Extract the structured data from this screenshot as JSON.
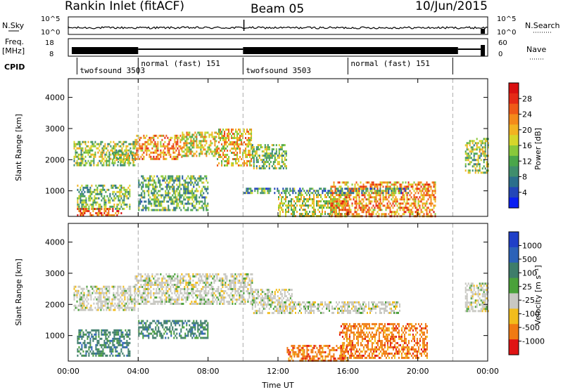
{
  "header": {
    "station": "Rankin Inlet (fitACF)",
    "beam": "Beam 05",
    "date": "10/Jun/2015"
  },
  "status_panels": {
    "nsky_label": "N.Sky",
    "nsearch_label": "N.Search",
    "nsky_ticks": [
      "10^5",
      "10^0"
    ],
    "nsearch_ticks": [
      "10^5",
      "10^0"
    ],
    "freq_label_1": "Freq.",
    "freq_label_2": "[MHz]",
    "freq_ticks": [
      "18",
      "8"
    ],
    "nave_label": "Nave",
    "nave_ticks": [
      "60",
      "0"
    ],
    "cpid_label": "CPID",
    "cpid_segments": [
      {
        "label": "twofsound 3503",
        "start": 0.5,
        "end": 4.0
      },
      {
        "label": "normal (fast) 151",
        "start": 4.0,
        "end": 10.0
      },
      {
        "label": "twofsound 3503",
        "start": 10.0,
        "end": 16.0
      },
      {
        "label": "normal (fast) 151",
        "start": 16.0,
        "end": 22.0
      }
    ]
  },
  "chart_data": [
    {
      "type": "heatmap",
      "title": "",
      "ylabel": "Slant Range [km]",
      "xlabel": "",
      "xlim": [
        0,
        24
      ],
      "ylim": [
        180,
        4600
      ],
      "yticks": [
        "1000",
        "2000",
        "3000",
        "4000"
      ],
      "colorbar": {
        "label": "Power [dB]",
        "ticks": [
          "4",
          "8",
          "12",
          "16",
          "20",
          "24",
          "28"
        ],
        "colors": [
          "#0a1ff2",
          "#2346b8",
          "#2b6f8c",
          "#3f8e6c",
          "#4aa64a",
          "#89c83a",
          "#d6d62a",
          "#f2b321",
          "#f48a1a",
          "#ef5a17",
          "#e52a16",
          "#d90f10"
        ]
      },
      "regions": [
        {
          "t0": 0.3,
          "t1": 3.8,
          "r0": 1800,
          "r1": 2600,
          "level": 0.45
        },
        {
          "t0": 2.5,
          "t1": 3.8,
          "r0": 1900,
          "r1": 2300,
          "level": 0.5
        },
        {
          "t0": 3.8,
          "t1": 6.5,
          "r0": 2000,
          "r1": 2800,
          "level": 0.7
        },
        {
          "t0": 6.5,
          "t1": 8.5,
          "r0": 2100,
          "r1": 2900,
          "level": 0.55
        },
        {
          "t0": 8.5,
          "t1": 10.5,
          "r0": 1800,
          "r1": 3000,
          "level": 0.62
        },
        {
          "t0": 10.5,
          "t1": 12.5,
          "r0": 1700,
          "r1": 2500,
          "level": 0.45
        },
        {
          "t0": 0.5,
          "t1": 3.5,
          "r0": 400,
          "r1": 1200,
          "level": 0.4
        },
        {
          "t0": 4.0,
          "t1": 8.0,
          "r0": 400,
          "r1": 1500,
          "level": 0.38
        },
        {
          "t0": 0.5,
          "t1": 3.0,
          "r0": 200,
          "r1": 450,
          "level": 0.8
        },
        {
          "t0": 12.0,
          "t1": 16.0,
          "r0": 200,
          "r1": 900,
          "level": 0.5
        },
        {
          "t0": 15.0,
          "t1": 21.0,
          "r0": 200,
          "r1": 1300,
          "level": 0.7
        },
        {
          "t0": 10.0,
          "t1": 19.5,
          "r0": 900,
          "r1": 1100,
          "level": 0.3
        },
        {
          "t0": 22.7,
          "t1": 24.0,
          "r0": 1600,
          "r1": 2700,
          "level": 0.45
        }
      ]
    },
    {
      "type": "heatmap",
      "title": "",
      "ylabel": "Slant Range [km]",
      "xlabel": "Time UT",
      "xlim": [
        0,
        24
      ],
      "ylim": [
        180,
        4600
      ],
      "xticks": [
        "00:00",
        "04:00",
        "08:00",
        "12:00",
        "16:00",
        "20:00",
        "00:00"
      ],
      "yticks": [
        "1000",
        "2000",
        "3000",
        "4000"
      ],
      "colorbar": {
        "label": "Velocity [m s⁻¹]",
        "ticks": [
          "1000",
          "500",
          "100",
          "25",
          "-25",
          "-100",
          "-500",
          "-1000"
        ],
        "colors": [
          "#1f3fc8",
          "#2c62b8",
          "#3e7d6a",
          "#4aa13a",
          "#c8c8c2",
          "#f2bd1c",
          "#f07a12",
          "#e01414"
        ]
      },
      "regions": [
        {
          "t0": 0.3,
          "t1": 3.8,
          "r0": 1800,
          "r1": 2600,
          "level": 0.5
        },
        {
          "t0": 3.8,
          "t1": 10.5,
          "r0": 2000,
          "r1": 3000,
          "level": 0.5
        },
        {
          "t0": 10.5,
          "t1": 12.8,
          "r0": 1700,
          "r1": 2500,
          "level": 0.5
        },
        {
          "t0": 0.5,
          "t1": 3.5,
          "r0": 350,
          "r1": 1200,
          "level": 0.3
        },
        {
          "t0": 4.0,
          "t1": 8.0,
          "r0": 900,
          "r1": 1500,
          "level": 0.3
        },
        {
          "t0": 12.5,
          "t1": 16.0,
          "r0": 200,
          "r1": 700,
          "level": 0.75
        },
        {
          "t0": 15.5,
          "t1": 20.5,
          "r0": 300,
          "r1": 1400,
          "level": 0.8
        },
        {
          "t0": 12.0,
          "t1": 19.0,
          "r0": 1700,
          "r1": 2100,
          "level": 0.5
        },
        {
          "t0": 22.7,
          "t1": 24.0,
          "r0": 1800,
          "r1": 2700,
          "level": 0.5
        }
      ]
    }
  ]
}
